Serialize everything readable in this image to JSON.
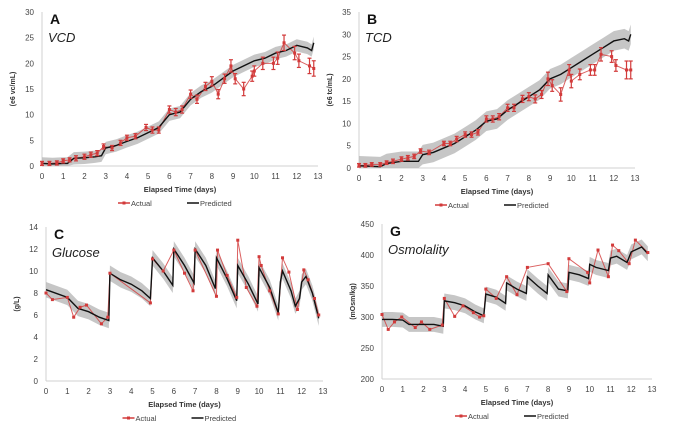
{
  "colors": {
    "actual": "#d23a3a",
    "predicted": "#111111",
    "band": "#b8b8b8",
    "axis": "#d0d0d0",
    "text": "#444444"
  },
  "chart_data": [
    {
      "type": "line",
      "letter": "A",
      "title": "VCD",
      "ylabel": "(e6 vc/mL)",
      "xlabel": "Elapsed Time (days)",
      "xlim": [
        0,
        13
      ],
      "ylim": [
        0,
        30
      ],
      "xticks": [
        0,
        1,
        2,
        3,
        4,
        5,
        6,
        7,
        8,
        9,
        10,
        11,
        12,
        13
      ],
      "yticks": [
        0,
        5,
        10,
        15,
        20,
        25,
        30
      ],
      "legend": {
        "placement": "bottom",
        "actual": "Actual",
        "predicted": "Predicted"
      },
      "band_halfwidth": 1.2,
      "error_bars": true,
      "predicted": [
        [
          0,
          0.5
        ],
        [
          0.5,
          0.4
        ],
        [
          1,
          0.5
        ],
        [
          1.2,
          0.5
        ],
        [
          1.5,
          1.5
        ],
        [
          2,
          1.6
        ],
        [
          2.5,
          1.8
        ],
        [
          2.8,
          2
        ],
        [
          3,
          3.5
        ],
        [
          3.5,
          4
        ],
        [
          4,
          4.8
        ],
        [
          4.5,
          5.5
        ],
        [
          5,
          6.5
        ],
        [
          5.5,
          7.5
        ],
        [
          6,
          10
        ],
        [
          6.5,
          10.5
        ],
        [
          7,
          13
        ],
        [
          7.5,
          14.5
        ],
        [
          8,
          15.5
        ],
        [
          8.5,
          17
        ],
        [
          9,
          18.5
        ],
        [
          9.5,
          19.5
        ],
        [
          10,
          20.5
        ],
        [
          10.5,
          21
        ],
        [
          11,
          22
        ],
        [
          11.5,
          22.5
        ],
        [
          12,
          23.5
        ],
        [
          12.5,
          23
        ],
        [
          12.7,
          22.5
        ],
        [
          12.8,
          24
        ]
      ],
      "actual": [
        [
          0,
          0.5,
          0.4
        ],
        [
          0.35,
          0.5,
          0.4
        ],
        [
          0.7,
          0.6,
          0.4
        ],
        [
          1,
          1,
          0.4
        ],
        [
          1.3,
          1.2,
          0.4
        ],
        [
          1.6,
          1.5,
          0.5
        ],
        [
          2,
          1.8,
          0.5
        ],
        [
          2.3,
          2.2,
          0.5
        ],
        [
          2.6,
          2.5,
          0.5
        ],
        [
          2.9,
          3.8,
          0.5
        ],
        [
          3.3,
          3.5,
          0.5
        ],
        [
          3.7,
          4.5,
          0.5
        ],
        [
          4,
          5.5,
          0.5
        ],
        [
          4.4,
          5.8,
          0.5
        ],
        [
          4.9,
          7.5,
          0.6
        ],
        [
          5.2,
          7,
          0.6
        ],
        [
          5.5,
          7,
          0.6
        ],
        [
          6,
          11,
          0.7
        ],
        [
          6.3,
          10.5,
          0.7
        ],
        [
          6.6,
          11,
          0.7
        ],
        [
          7,
          14,
          0.8
        ],
        [
          7.3,
          13,
          0.8
        ],
        [
          7.7,
          15.5,
          0.8
        ],
        [
          8,
          16.5,
          0.9
        ],
        [
          8.3,
          14,
          0.9
        ],
        [
          8.6,
          17,
          0.9
        ],
        [
          8.9,
          19.5,
          1.2
        ],
        [
          9.1,
          17,
          1.0
        ],
        [
          9.5,
          15,
          1.3
        ],
        [
          9.9,
          17.5,
          1.0
        ],
        [
          10,
          18.5,
          1.0
        ],
        [
          10.4,
          20,
          1.2
        ],
        [
          10.9,
          20,
          1.2
        ],
        [
          11.1,
          21,
          1.2
        ],
        [
          11.4,
          24,
          1.5
        ],
        [
          11.9,
          22,
          1.3
        ],
        [
          12.1,
          20.5,
          1.3
        ],
        [
          12.6,
          19.5,
          1.5
        ],
        [
          12.8,
          19,
          1.5
        ]
      ]
    },
    {
      "type": "line",
      "letter": "B",
      "title": "TCD",
      "ylabel": "(e6 tc/mL)",
      "xlabel": "Elapsed Time (days)",
      "xlim": [
        0,
        13
      ],
      "ylim": [
        0,
        35
      ],
      "xticks": [
        0,
        1,
        2,
        3,
        4,
        5,
        6,
        7,
        8,
        9,
        10,
        11,
        12,
        13
      ],
      "yticks": [
        0,
        5,
        10,
        15,
        20,
        25,
        30,
        35
      ],
      "legend": {
        "placement": "bottom",
        "actual": "Actual",
        "predicted": "Predicted"
      },
      "band_halfwidth": 2.2,
      "error_bars": true,
      "predicted": [
        [
          0,
          0.5
        ],
        [
          1,
          0.3
        ],
        [
          1.3,
          1
        ],
        [
          2,
          1.5
        ],
        [
          2.5,
          1.5
        ],
        [
          2.8,
          1.5
        ],
        [
          3,
          3
        ],
        [
          3.5,
          3.5
        ],
        [
          4,
          4.5
        ],
        [
          4.5,
          5.5
        ],
        [
          5,
          7
        ],
        [
          5.5,
          8.5
        ],
        [
          6,
          10.5
        ],
        [
          6.5,
          11
        ],
        [
          7,
          13
        ],
        [
          7.5,
          14.5
        ],
        [
          8,
          16
        ],
        [
          8.5,
          17.5
        ],
        [
          9,
          20
        ],
        [
          9.5,
          21
        ],
        [
          10,
          22.5
        ],
        [
          10.5,
          24
        ],
        [
          11,
          25.5
        ],
        [
          11.5,
          27
        ],
        [
          12,
          28.5
        ],
        [
          12.5,
          29
        ],
        [
          12.7,
          28.5
        ],
        [
          12.8,
          30
        ]
      ],
      "actual": [
        [
          0,
          0.6,
          0.4
        ],
        [
          0.3,
          0.6,
          0.4
        ],
        [
          0.6,
          0.8,
          0.4
        ],
        [
          1,
          0.8,
          0.4
        ],
        [
          1.3,
          1.2,
          0.4
        ],
        [
          1.6,
          1.5,
          0.5
        ],
        [
          2,
          2,
          0.5
        ],
        [
          2.3,
          2.3,
          0.5
        ],
        [
          2.6,
          2.6,
          0.5
        ],
        [
          2.9,
          3.8,
          0.5
        ],
        [
          3.3,
          3.5,
          0.5
        ],
        [
          4,
          5.5,
          0.5
        ],
        [
          4.3,
          5.5,
          0.5
        ],
        [
          4.6,
          6.5,
          0.6
        ],
        [
          5,
          7.5,
          0.6
        ],
        [
          5.3,
          7.5,
          0.6
        ],
        [
          5.6,
          8,
          0.6
        ],
        [
          6,
          11,
          0.7
        ],
        [
          6.3,
          11,
          0.7
        ],
        [
          6.6,
          11.5,
          0.7
        ],
        [
          7,
          13.5,
          0.8
        ],
        [
          7.3,
          13.5,
          0.8
        ],
        [
          7.7,
          15.5,
          0.8
        ],
        [
          8,
          16,
          0.9
        ],
        [
          8.3,
          15.5,
          0.9
        ],
        [
          8.6,
          16.5,
          0.9
        ],
        [
          8.9,
          20,
          1.5
        ],
        [
          9.1,
          18.5,
          1.3
        ],
        [
          9.5,
          16.5,
          1.5
        ],
        [
          9.9,
          22,
          1.2
        ],
        [
          10,
          19.5,
          1.5
        ],
        [
          10.4,
          21,
          1.2
        ],
        [
          10.9,
          22,
          1.2
        ],
        [
          11.1,
          22,
          1.2
        ],
        [
          11.4,
          25.5,
          1.5
        ],
        [
          11.9,
          25,
          1.3
        ],
        [
          12.1,
          23,
          1.3
        ],
        [
          12.6,
          22,
          2
        ],
        [
          12.8,
          22,
          2
        ]
      ]
    },
    {
      "type": "line",
      "letter": "C",
      "title": "Glucose",
      "ylabel": "(g/L)",
      "xlabel": "Elapsed Time (days)",
      "xlim": [
        0,
        13
      ],
      "ylim": [
        0,
        14
      ],
      "xticks": [
        0,
        1,
        2,
        3,
        4,
        5,
        6,
        7,
        8,
        9,
        10,
        11,
        12,
        13
      ],
      "yticks": [
        0,
        2,
        4,
        6,
        8,
        10,
        12,
        14
      ],
      "legend": {
        "placement": "bottom",
        "actual": "Actual",
        "predicted": "Predicted"
      },
      "band_halfwidth": 0.7,
      "error_bars": false,
      "predicted": [
        [
          0,
          8.3
        ],
        [
          1,
          7.6
        ],
        [
          1.5,
          6.6
        ],
        [
          2,
          6.3
        ],
        [
          2.5,
          5.8
        ],
        [
          2.95,
          5.5
        ],
        [
          3,
          9.8
        ],
        [
          3.5,
          9.2
        ],
        [
          4,
          8.8
        ],
        [
          4.5,
          8.2
        ],
        [
          4.9,
          7.5
        ],
        [
          5,
          11.2
        ],
        [
          5.5,
          10
        ],
        [
          5.95,
          8.7
        ],
        [
          6,
          12
        ],
        [
          6.5,
          10.5
        ],
        [
          6.95,
          8.9
        ],
        [
          7,
          12
        ],
        [
          7.5,
          10.5
        ],
        [
          7.95,
          8.4
        ],
        [
          8,
          11.2
        ],
        [
          8.5,
          9.3
        ],
        [
          8.95,
          7.3
        ],
        [
          9,
          10.5
        ],
        [
          9.5,
          8.8
        ],
        [
          9.95,
          7
        ],
        [
          10,
          10.3
        ],
        [
          10.5,
          8.5
        ],
        [
          10.9,
          6.2
        ],
        [
          11,
          9
        ],
        [
          11.1,
          10
        ],
        [
          11.5,
          8.2
        ],
        [
          11.7,
          6.8
        ],
        [
          11.9,
          7.5
        ],
        [
          12,
          9
        ],
        [
          12.2,
          9.5
        ],
        [
          12.5,
          8
        ],
        [
          12.8,
          5.7
        ]
      ],
      "actual": [
        [
          0,
          8
        ],
        [
          0.3,
          7.4
        ],
        [
          1,
          7.6
        ],
        [
          1.3,
          5.8
        ],
        [
          1.6,
          6.7
        ],
        [
          1.9,
          6.9
        ],
        [
          2.6,
          5.2
        ],
        [
          2.9,
          5.8
        ],
        [
          3,
          9.8
        ],
        [
          4.9,
          7.1
        ],
        [
          5,
          11.1
        ],
        [
          5.5,
          10
        ],
        [
          6,
          11.9
        ],
        [
          6.5,
          9.8
        ],
        [
          6.9,
          8.2
        ],
        [
          7,
          11.9
        ],
        [
          8,
          7.7
        ],
        [
          8.05,
          11.9
        ],
        [
          8.5,
          9.6
        ],
        [
          8.95,
          7.6
        ],
        [
          9,
          12.8
        ],
        [
          9.4,
          8.5
        ],
        [
          9.9,
          6.8
        ],
        [
          10,
          11.3
        ],
        [
          10.1,
          10.5
        ],
        [
          10.5,
          8.2
        ],
        [
          10.9,
          6.1
        ],
        [
          11.1,
          11.2
        ],
        [
          11.4,
          9.9
        ],
        [
          11.8,
          6.5
        ],
        [
          12.1,
          10.1
        ],
        [
          12.3,
          9.2
        ],
        [
          12.6,
          7.5
        ],
        [
          12.8,
          6
        ]
      ]
    },
    {
      "type": "line",
      "letter": "G",
      "title": "Osmolality",
      "ylabel": "(mOsm/kg)",
      "xlabel": "Elapsed Time (days)",
      "xlim": [
        0,
        13
      ],
      "ylim": [
        200,
        450
      ],
      "xticks": [
        0,
        1,
        2,
        3,
        4,
        5,
        6,
        7,
        8,
        9,
        10,
        11,
        12,
        13
      ],
      "yticks": [
        200,
        250,
        300,
        350,
        400,
        450
      ],
      "legend": {
        "placement": "bottom",
        "actual": "Actual",
        "predicted": "Predicted"
      },
      "band_halfwidth": 12,
      "error_bars": false,
      "predicted": [
        [
          0,
          296
        ],
        [
          0.5,
          296
        ],
        [
          1,
          295
        ],
        [
          1.3,
          288
        ],
        [
          2,
          288
        ],
        [
          2.5,
          288
        ],
        [
          2.95,
          285
        ],
        [
          3,
          326
        ],
        [
          3.5,
          323
        ],
        [
          4,
          318
        ],
        [
          4.5,
          308
        ],
        [
          4.9,
          302
        ],
        [
          5,
          337
        ],
        [
          5.5,
          332
        ],
        [
          5.95,
          322
        ],
        [
          6,
          355
        ],
        [
          6.5,
          345
        ],
        [
          6.95,
          338
        ],
        [
          7,
          365
        ],
        [
          7.5,
          350
        ],
        [
          7.95,
          338
        ],
        [
          8,
          368
        ],
        [
          8.5,
          345
        ],
        [
          8.95,
          342
        ],
        [
          9,
          372
        ],
        [
          9.5,
          368
        ],
        [
          9.95,
          362
        ],
        [
          10,
          385
        ],
        [
          10.3,
          380
        ],
        [
          10.9,
          375
        ],
        [
          11,
          395
        ],
        [
          11.3,
          398
        ],
        [
          11.8,
          388
        ],
        [
          12,
          405
        ],
        [
          12.5,
          413
        ],
        [
          12.8,
          402
        ]
      ],
      "actual": [
        [
          0,
          304
        ],
        [
          0.3,
          280
        ],
        [
          0.6,
          292
        ],
        [
          0.95,
          300
        ],
        [
          1.6,
          283
        ],
        [
          1.9,
          292
        ],
        [
          2.3,
          280
        ],
        [
          2.9,
          287
        ],
        [
          3,
          330
        ],
        [
          3.5,
          301
        ],
        [
          3.9,
          318
        ],
        [
          4.4,
          307
        ],
        [
          4.7,
          300
        ],
        [
          4.9,
          302
        ],
        [
          5,
          345
        ],
        [
          5.5,
          330
        ],
        [
          6,
          365
        ],
        [
          6.5,
          336
        ],
        [
          7,
          380
        ],
        [
          8,
          386
        ],
        [
          8.9,
          341
        ],
        [
          9,
          394
        ],
        [
          9.9,
          372
        ],
        [
          10,
          355
        ],
        [
          10.4,
          408
        ],
        [
          10.9,
          365
        ],
        [
          11.1,
          416
        ],
        [
          11.4,
          407
        ],
        [
          11.9,
          386
        ],
        [
          12.2,
          424
        ],
        [
          12.8,
          404
        ]
      ]
    }
  ]
}
